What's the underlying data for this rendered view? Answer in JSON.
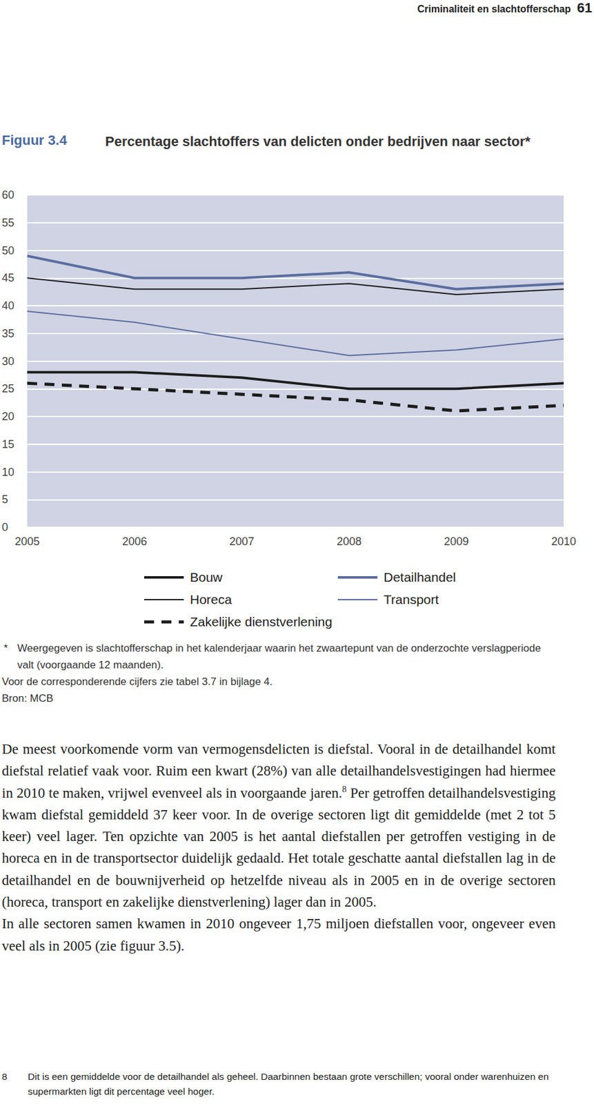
{
  "header": {
    "running_title": "Criminaliteit en slachtofferschap",
    "page_number": "61"
  },
  "figure_label": "Figuur 3.4",
  "chart_data": {
    "type": "line",
    "title": "Percentage slachtoffers van delicten onder bedrijven naar sector*",
    "categories": [
      "2005",
      "2006",
      "2007",
      "2008",
      "2009",
      "2010"
    ],
    "series": [
      {
        "name": "Bouw",
        "color": "#1c1c1c",
        "line_style": "bold",
        "values": [
          28,
          28,
          27,
          25,
          25,
          26
        ]
      },
      {
        "name": "Detailhandel",
        "color": "#5a6d9f",
        "line_style": "bold",
        "values": [
          49,
          45,
          45,
          46,
          43,
          44
        ]
      },
      {
        "name": "Horeca",
        "color": "#1c1c1c",
        "line_style": "solid",
        "values": [
          45,
          43,
          43,
          44,
          42,
          43
        ]
      },
      {
        "name": "Transport",
        "color": "#5a6d9f",
        "line_style": "solid",
        "values": [
          39,
          37,
          34,
          31,
          32,
          34
        ]
      },
      {
        "name": "Zakelijke dienstverlening",
        "color": "#1c1c1c",
        "line_style": "dashed",
        "values": [
          26,
          25,
          24,
          23,
          21,
          22
        ]
      }
    ],
    "ylim": [
      0,
      60
    ],
    "yticks": [
      0,
      5,
      10,
      15,
      20,
      25,
      30,
      35,
      40,
      45,
      50,
      55,
      60
    ],
    "grid": true,
    "legend": "bottom"
  },
  "notes": [
    {
      "marker": "*",
      "text": "Weergegeven is slachtofferschap in het kalenderjaar waarin het zwaartepunt van de onderzochte verslagperiode valt (voorgaande 12 maanden)."
    },
    {
      "text": "Voor de corresponderende cijfers zie tabel 3.7 in bijlage 4."
    },
    {
      "text": "Bron: MCB"
    }
  ],
  "body": [
    {
      "parts": [
        {
          "text": "De meest voorkomende vorm van vermogensdelicten is diefstal. Vooral in de detailhandel komt diefstal relatief vaak voor. Ruim een kwart (28%) van alle detailhandelsvestigingen had hiermee in 2010 te maken, vrijwel evenveel als in voorgaande jaren."
        },
        {
          "footnote_ref": "8"
        },
        {
          "text": " Per getroffen detailhandelsvestiging kwam diefstal gemiddeld 37 keer voor. In de overige sectoren ligt dit gemiddelde (met 2 tot 5 keer) veel lager. Ten opzichte van 2005 is het aantal diefstallen per getroffen vestiging in de horeca en in de transportsector duidelijk gedaald. Het totale geschatte aantal diefstallen lag in de detailhandel en de bouwnijverheid op hetzelfde niveau als in 2005 en in de overige sectoren (horeca, transport en zakelijke dienstverlening) lager dan in 2005."
        }
      ]
    },
    {
      "parts": [
        {
          "text": "In alle sectoren samen kwamen in 2010 ongeveer 1,75 miljoen diefstallen voor, ongeveer even veel als in 2005 (zie figuur 3.5)."
        }
      ]
    }
  ],
  "footnotes": [
    {
      "number": "8",
      "text": "Dit is een gemiddelde voor de detailhandel als geheel. Daarbinnen bestaan grote verschillen; vooral onder warenhuizen en supermarkten ligt dit percentage veel hoger."
    }
  ]
}
